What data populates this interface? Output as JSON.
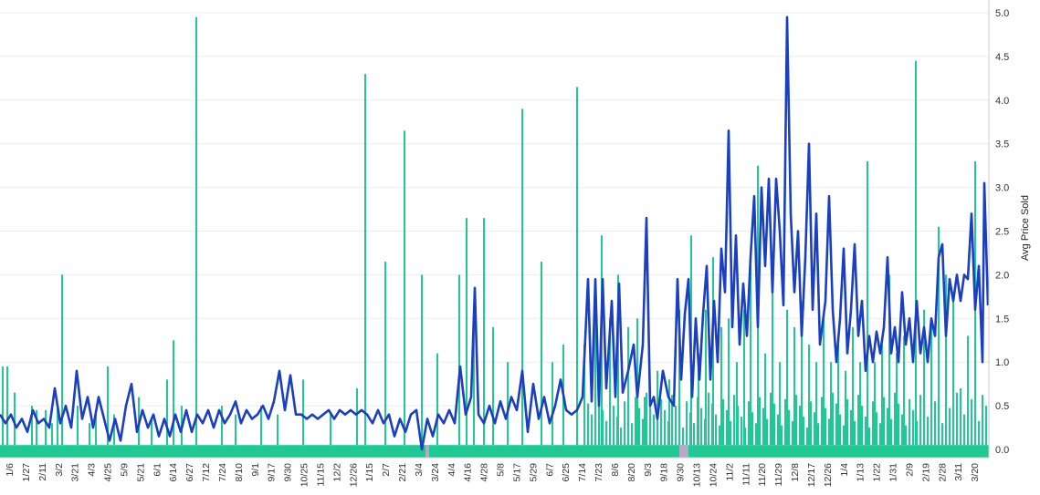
{
  "chart_data": {
    "type": "bar",
    "title": "",
    "xlabel": "",
    "ylabel": "Avg Price Sold",
    "ylim": [
      0,
      5.0
    ],
    "y_ticks": [
      "0.0",
      "0.5",
      "1.0",
      "1.5",
      "2.0",
      "2.5",
      "3.0",
      "3.5",
      "4.0",
      "4.5",
      "5.0"
    ],
    "y_tick_values": [
      0,
      0.5,
      1.0,
      1.5,
      2.0,
      2.5,
      3.0,
      3.5,
      4.0,
      4.5,
      5.0
    ],
    "x_tick_labels": [
      "1/6",
      "1/27",
      "2/11",
      "3/2",
      "3/21",
      "4/3",
      "4/25",
      "5/9",
      "5/21",
      "6/1",
      "6/14",
      "6/27",
      "7/12",
      "7/24",
      "8/10",
      "9/1",
      "9/17",
      "9/30",
      "10/25",
      "11/15",
      "12/2",
      "12/26",
      "1/15",
      "2/7",
      "2/21",
      "3/4",
      "3/24",
      "4/4",
      "4/16",
      "4/28",
      "5/8",
      "5/17",
      "5/29",
      "6/7",
      "6/25",
      "7/14",
      "7/23",
      "8/6",
      "8/20",
      "9/3",
      "9/18",
      "9/30",
      "10/13",
      "10/24",
      "11/2",
      "11/11",
      "11/20",
      "11/29",
      "12/8",
      "12/17",
      "12/26",
      "1/4",
      "1/13",
      "1/22",
      "1/31",
      "2/9",
      "2/19",
      "2/28",
      "3/11",
      "3/20"
    ],
    "grid": true,
    "legend": "none",
    "axis_position": "right",
    "series": [
      {
        "type": "bar",
        "color": "#1ec994",
        "baseline": 0.05,
        "spikes": [
          [
            3,
            0.95
          ],
          [
            8,
            0.95
          ],
          [
            16,
            0.65
          ],
          [
            35,
            0.5
          ],
          [
            40,
            0.45
          ],
          [
            50,
            0.45
          ],
          [
            57,
            0.3
          ],
          [
            63,
            0.5
          ],
          [
            68,
            2.0
          ],
          [
            85,
            0.5
          ],
          [
            98,
            0.3
          ],
          [
            105,
            0.45
          ],
          [
            118,
            0.95
          ],
          [
            125,
            0.4
          ],
          [
            152,
            0.6
          ],
          [
            166,
            0.35
          ],
          [
            183,
            0.8
          ],
          [
            190,
            1.25
          ],
          [
            199,
            0.5
          ],
          [
            215,
            4.95
          ],
          [
            243,
            0.5
          ],
          [
            258,
            0.4
          ],
          [
            286,
            0.5
          ],
          [
            304,
            0.4
          ],
          [
            332,
            0.8
          ],
          [
            362,
            0.4
          ],
          [
            391,
            0.7
          ],
          [
            400,
            4.3
          ],
          [
            422,
            2.15
          ],
          [
            443,
            3.65
          ],
          [
            462,
            2.0
          ],
          [
            479,
            1.1
          ],
          [
            503,
            2.0
          ],
          [
            511,
            2.65
          ],
          [
            519,
            1.5
          ],
          [
            530,
            2.65
          ],
          [
            540,
            1.4
          ],
          [
            556,
            1.0
          ],
          [
            572,
            3.9
          ],
          [
            593,
            2.15
          ],
          [
            605,
            1.0
          ],
          [
            617,
            1.2
          ],
          [
            632,
            4.15
          ],
          [
            640,
            1.2
          ],
          [
            652,
            1.7
          ],
          [
            659,
            2.45
          ],
          [
            668,
            1.5
          ],
          [
            677,
            2.0
          ],
          [
            688,
            1.4
          ],
          [
            698,
            1.5
          ],
          [
            706,
            0.6
          ],
          [
            720,
            0.9
          ],
          [
            733,
            0.8
          ],
          [
            744,
            1.6
          ],
          [
            757,
            2.45
          ],
          [
            765,
            1.1
          ],
          [
            773,
            1.6
          ],
          [
            781,
            2.2
          ],
          [
            790,
            1.4
          ],
          [
            798,
            1.5
          ],
          [
            807,
            1.0
          ],
          [
            815,
            1.6
          ],
          [
            822,
            2.1
          ],
          [
            830,
            3.25
          ],
          [
            838,
            1.1
          ],
          [
            846,
            1.8
          ],
          [
            854,
            1.0
          ],
          [
            862,
            1.6
          ],
          [
            870,
            1.4
          ],
          [
            878,
            1.7
          ],
          [
            886,
            1.2
          ],
          [
            894,
            1.0
          ],
          [
            902,
            1.5
          ],
          [
            910,
            1.0
          ],
          [
            918,
            1.2
          ],
          [
            926,
            0.9
          ],
          [
            934,
            1.4
          ],
          [
            942,
            1.0
          ],
          [
            950,
            3.3
          ],
          [
            958,
            1.0
          ],
          [
            966,
            1.2
          ],
          [
            974,
            2.0
          ],
          [
            982,
            1.1
          ],
          [
            990,
            1.3
          ],
          [
            1003,
            4.45
          ],
          [
            1012,
            1.6
          ],
          [
            1020,
            1.4
          ],
          [
            1028,
            2.55
          ],
          [
            1036,
            2.0
          ],
          [
            1044,
            1.8
          ],
          [
            1052,
            0.7
          ],
          [
            1060,
            1.3
          ],
          [
            1068,
            3.3
          ],
          [
            1076,
            0.5
          ]
        ],
        "color_alt": "#b8a8c8"
      },
      {
        "type": "line",
        "color": "#1a3fc0",
        "points": [
          [
            0,
            0.4
          ],
          [
            6,
            0.3
          ],
          [
            12,
            0.4
          ],
          [
            18,
            0.25
          ],
          [
            24,
            0.35
          ],
          [
            30,
            0.2
          ],
          [
            36,
            0.45
          ],
          [
            42,
            0.3
          ],
          [
            48,
            0.35
          ],
          [
            54,
            0.25
          ],
          [
            60,
            0.7
          ],
          [
            66,
            0.3
          ],
          [
            72,
            0.5
          ],
          [
            78,
            0.25
          ],
          [
            84,
            0.9
          ],
          [
            90,
            0.35
          ],
          [
            96,
            0.6
          ],
          [
            102,
            0.25
          ],
          [
            108,
            0.6
          ],
          [
            114,
            0.35
          ],
          [
            120,
            0.1
          ],
          [
            126,
            0.35
          ],
          [
            132,
            0.1
          ],
          [
            138,
            0.5
          ],
          [
            144,
            0.75
          ],
          [
            150,
            0.2
          ],
          [
            156,
            0.45
          ],
          [
            162,
            0.25
          ],
          [
            168,
            0.4
          ],
          [
            174,
            0.15
          ],
          [
            180,
            0.35
          ],
          [
            186,
            0.15
          ],
          [
            192,
            0.4
          ],
          [
            198,
            0.2
          ],
          [
            204,
            0.45
          ],
          [
            210,
            0.2
          ],
          [
            216,
            0.4
          ],
          [
            222,
            0.3
          ],
          [
            228,
            0.45
          ],
          [
            234,
            0.25
          ],
          [
            240,
            0.45
          ],
          [
            246,
            0.3
          ],
          [
            252,
            0.4
          ],
          [
            258,
            0.55
          ],
          [
            264,
            0.3
          ],
          [
            270,
            0.45
          ],
          [
            276,
            0.35
          ],
          [
            282,
            0.4
          ],
          [
            288,
            0.5
          ],
          [
            294,
            0.35
          ],
          [
            300,
            0.55
          ],
          [
            306,
            0.9
          ],
          [
            312,
            0.45
          ],
          [
            318,
            0.85
          ],
          [
            324,
            0.4
          ],
          [
            330,
            0.4
          ],
          [
            336,
            0.35
          ],
          [
            342,
            0.4
          ],
          [
            348,
            0.35
          ],
          [
            354,
            0.4
          ],
          [
            360,
            0.45
          ],
          [
            366,
            0.35
          ],
          [
            372,
            0.45
          ],
          [
            378,
            0.4
          ],
          [
            384,
            0.45
          ],
          [
            390,
            0.4
          ],
          [
            396,
            0.45
          ],
          [
            402,
            0.4
          ],
          [
            408,
            0.3
          ],
          [
            414,
            0.45
          ],
          [
            420,
            0.3
          ],
          [
            426,
            0.4
          ],
          [
            432,
            0.15
          ],
          [
            438,
            0.35
          ],
          [
            444,
            0.2
          ],
          [
            450,
            0.4
          ],
          [
            456,
            0.45
          ],
          [
            462,
            0.0
          ],
          [
            468,
            0.35
          ],
          [
            474,
            0.15
          ],
          [
            480,
            0.4
          ],
          [
            486,
            0.3
          ],
          [
            492,
            0.45
          ],
          [
            498,
            0.3
          ],
          [
            504,
            0.95
          ],
          [
            510,
            0.4
          ],
          [
            516,
            0.6
          ],
          [
            520,
            1.85
          ],
          [
            524,
            0.4
          ],
          [
            530,
            0.3
          ],
          [
            536,
            0.5
          ],
          [
            542,
            0.3
          ],
          [
            548,
            0.55
          ],
          [
            554,
            0.35
          ],
          [
            560,
            0.6
          ],
          [
            566,
            0.45
          ],
          [
            572,
            0.9
          ],
          [
            578,
            0.2
          ],
          [
            584,
            0.75
          ],
          [
            590,
            0.35
          ],
          [
            596,
            0.6
          ],
          [
            602,
            0.3
          ],
          [
            608,
            0.5
          ],
          [
            614,
            0.8
          ],
          [
            620,
            0.45
          ],
          [
            626,
            0.4
          ],
          [
            632,
            0.45
          ],
          [
            638,
            0.6
          ],
          [
            644,
            1.95
          ],
          [
            648,
            0.55
          ],
          [
            652,
            1.95
          ],
          [
            656,
            0.5
          ],
          [
            660,
            1.95
          ],
          [
            664,
            0.7
          ],
          [
            670,
            1.7
          ],
          [
            674,
            0.6
          ],
          [
            678,
            1.9
          ],
          [
            682,
            0.65
          ],
          [
            688,
            0.9
          ],
          [
            694,
            1.2
          ],
          [
            698,
            0.6
          ],
          [
            704,
            1.2
          ],
          [
            708,
            2.65
          ],
          [
            712,
            0.5
          ],
          [
            716,
            0.6
          ],
          [
            720,
            0.35
          ],
          [
            726,
            0.9
          ],
          [
            732,
            0.6
          ],
          [
            738,
            0.5
          ],
          [
            742,
            1.95
          ],
          [
            746,
            0.8
          ],
          [
            750,
            1.55
          ],
          [
            754,
            1.95
          ],
          [
            758,
            0.6
          ],
          [
            762,
            1.5
          ],
          [
            766,
            0.8
          ],
          [
            770,
            1.55
          ],
          [
            774,
            2.1
          ],
          [
            778,
            0.8
          ],
          [
            782,
            1.7
          ],
          [
            786,
            1.0
          ],
          [
            790,
            2.3
          ],
          [
            794,
            1.8
          ],
          [
            798,
            3.65
          ],
          [
            802,
            1.4
          ],
          [
            806,
            2.45
          ],
          [
            810,
            1.2
          ],
          [
            814,
            1.9
          ],
          [
            818,
            1.3
          ],
          [
            822,
            2.2
          ],
          [
            826,
            2.9
          ],
          [
            830,
            1.4
          ],
          [
            834,
            3.0
          ],
          [
            838,
            2.1
          ],
          [
            842,
            3.1
          ],
          [
            846,
            1.8
          ],
          [
            850,
            3.1
          ],
          [
            854,
            2.5
          ],
          [
            858,
            1.65
          ],
          [
            862,
            4.95
          ],
          [
            866,
            2.7
          ],
          [
            870,
            1.8
          ],
          [
            874,
            2.5
          ],
          [
            878,
            1.3
          ],
          [
            882,
            2.2
          ],
          [
            886,
            3.5
          ],
          [
            890,
            1.6
          ],
          [
            894,
            2.7
          ],
          [
            898,
            1.2
          ],
          [
            904,
            1.7
          ],
          [
            908,
            2.9
          ],
          [
            912,
            1.6
          ],
          [
            916,
            1.0
          ],
          [
            920,
            1.5
          ],
          [
            924,
            2.3
          ],
          [
            928,
            1.1
          ],
          [
            932,
            1.6
          ],
          [
            936,
            2.35
          ],
          [
            940,
            1.3
          ],
          [
            944,
            1.7
          ],
          [
            948,
            0.9
          ],
          [
            952,
            1.3
          ],
          [
            956,
            1.0
          ],
          [
            960,
            1.35
          ],
          [
            964,
            1.1
          ],
          [
            968,
            1.4
          ],
          [
            972,
            2.2
          ],
          [
            976,
            1.1
          ],
          [
            980,
            1.4
          ],
          [
            984,
            1.0
          ],
          [
            988,
            1.8
          ],
          [
            992,
            1.2
          ],
          [
            996,
            1.5
          ],
          [
            1000,
            1.0
          ],
          [
            1004,
            1.7
          ],
          [
            1008,
            1.1
          ],
          [
            1012,
            1.4
          ],
          [
            1016,
            1.0
          ],
          [
            1020,
            1.5
          ],
          [
            1024,
            1.3
          ],
          [
            1028,
            2.2
          ],
          [
            1032,
            2.35
          ],
          [
            1036,
            1.3
          ],
          [
            1040,
            1.95
          ],
          [
            1044,
            1.7
          ],
          [
            1048,
            2.0
          ],
          [
            1052,
            1.7
          ],
          [
            1056,
            2.0
          ],
          [
            1060,
            1.95
          ],
          [
            1064,
            2.7
          ],
          [
            1068,
            1.6
          ],
          [
            1072,
            2.1
          ],
          [
            1076,
            1.0
          ],
          [
            1078,
            3.05
          ],
          [
            1082,
            1.65
          ]
        ]
      }
    ]
  }
}
